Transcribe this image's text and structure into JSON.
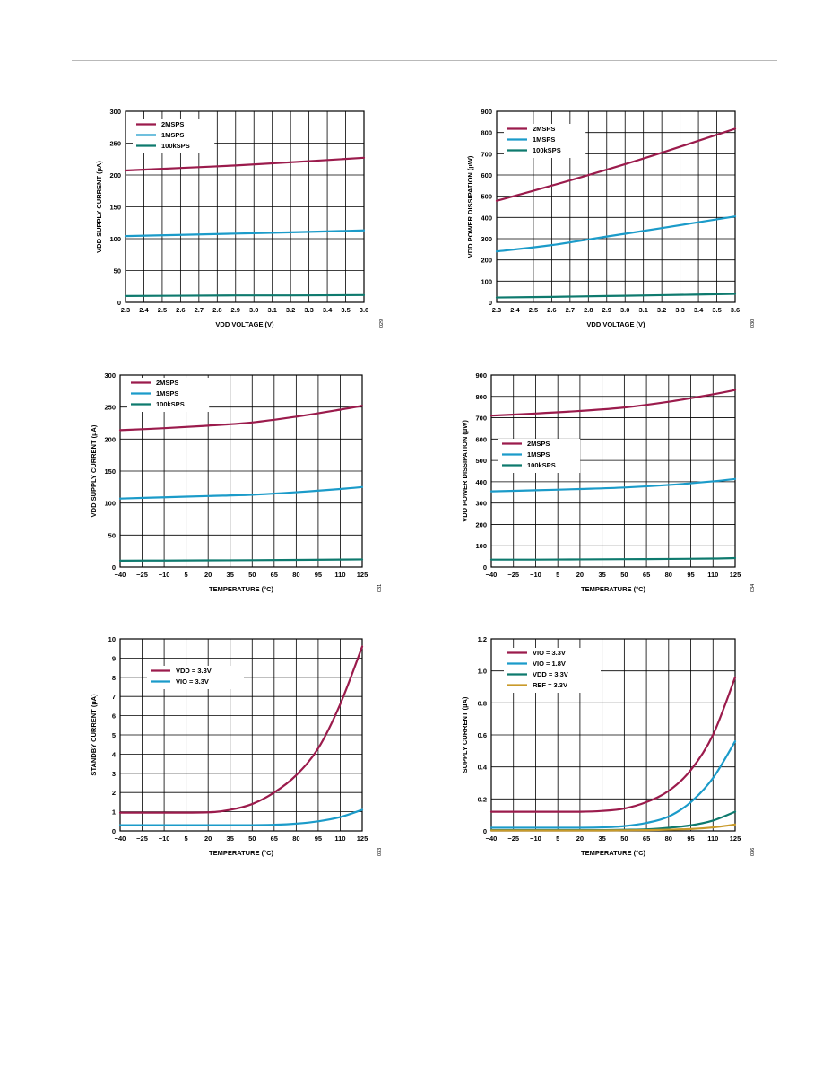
{
  "colors": {
    "maroon": "#9b1b4c",
    "cyan": "#1b9bc9",
    "teal": "#0e7a6e",
    "gold": "#c99a2a",
    "grid": "#000000",
    "rule": "#b9b9b9"
  },
  "chart_data": [
    {
      "type": "line",
      "id": "c1",
      "fig_code": "029",
      "xlabel": "VDD VOLTAGE (V)",
      "ylabel": "VDD SUPPLY CURRENT (µA)",
      "xlim": [
        2.3,
        3.6
      ],
      "ylim": [
        0,
        300
      ],
      "xticks": [
        "2.3",
        "2.4",
        "2.5",
        "2.6",
        "2.7",
        "2.8",
        "2.9",
        "3.0",
        "3.1",
        "3.2",
        "3.3",
        "3.4",
        "3.5",
        "3.6"
      ],
      "yticks": [
        "0",
        "50",
        "100",
        "150",
        "200",
        "250",
        "300"
      ],
      "grid": true,
      "legend_position": "top-left",
      "series": [
        {
          "name": "2MSPS",
          "color_key": "maroon",
          "x": [
            2.3,
            2.6,
            2.9,
            3.2,
            3.6
          ],
          "y": [
            207,
            211,
            215,
            220,
            227
          ]
        },
        {
          "name": "1MSPS",
          "color_key": "cyan",
          "x": [
            2.3,
            2.6,
            2.9,
            3.2,
            3.6
          ],
          "y": [
            104,
            106,
            108,
            110,
            113
          ]
        },
        {
          "name": "100kSPS",
          "color_key": "teal",
          "x": [
            2.3,
            2.6,
            2.9,
            3.2,
            3.6
          ],
          "y": [
            10,
            10.5,
            11,
            11,
            11.5
          ]
        }
      ]
    },
    {
      "type": "line",
      "id": "c2",
      "fig_code": "030",
      "xlabel": "VDD VOLTAGE (V)",
      "ylabel": "VDD POWER DISSIPATION (µW)",
      "xlim": [
        2.3,
        3.6
      ],
      "ylim": [
        0,
        900
      ],
      "xticks": [
        "2.3",
        "2.4",
        "2.5",
        "2.6",
        "2.7",
        "2.8",
        "2.9",
        "3.0",
        "3.1",
        "3.2",
        "3.3",
        "3.4",
        "3.5",
        "3.6"
      ],
      "yticks": [
        "0",
        "100",
        "200",
        "300",
        "400",
        "500",
        "600",
        "700",
        "800",
        "900"
      ],
      "grid": true,
      "legend_position": "top-left",
      "series": [
        {
          "name": "2MSPS",
          "color_key": "maroon",
          "x": [
            2.3,
            2.6,
            2.9,
            3.2,
            3.6
          ],
          "y": [
            478,
            550,
            625,
            705,
            818
          ]
        },
        {
          "name": "1MSPS",
          "color_key": "cyan",
          "x": [
            2.3,
            2.6,
            2.9,
            3.2,
            3.6
          ],
          "y": [
            240,
            270,
            310,
            350,
            405
          ]
        },
        {
          "name": "100kSPS",
          "color_key": "teal",
          "x": [
            2.3,
            2.6,
            2.9,
            3.2,
            3.6
          ],
          "y": [
            23,
            26,
            30,
            34,
            40
          ]
        }
      ]
    },
    {
      "type": "line",
      "id": "c3",
      "fig_code": "031",
      "xlabel": "TEMPERATURE (°C)",
      "ylabel": "VDD SUPPLY CURRENT (µA)",
      "xlim": [
        -40,
        125
      ],
      "ylim": [
        0,
        300
      ],
      "xticks": [
        "−40",
        "−25",
        "−10",
        "5",
        "20",
        "35",
        "50",
        "65",
        "80",
        "95",
        "110",
        "125"
      ],
      "yticks": [
        "0",
        "50",
        "100",
        "150",
        "200",
        "250",
        "300"
      ],
      "grid": true,
      "legend_position": "top-left",
      "series": [
        {
          "name": "2MSPS",
          "color_key": "maroon",
          "x": [
            -40,
            -10,
            20,
            50,
            80,
            110,
            125
          ],
          "y": [
            214,
            217,
            221,
            226,
            235,
            246,
            252
          ]
        },
        {
          "name": "1MSPS",
          "color_key": "cyan",
          "x": [
            -40,
            -10,
            20,
            50,
            80,
            110,
            125
          ],
          "y": [
            107,
            109,
            111,
            113,
            117,
            122,
            125
          ]
        },
        {
          "name": "100kSPS",
          "color_key": "teal",
          "x": [
            -40,
            -10,
            20,
            50,
            80,
            110,
            125
          ],
          "y": [
            10,
            10.2,
            10.5,
            10.8,
            11.2,
            11.7,
            12
          ]
        }
      ]
    },
    {
      "type": "line",
      "id": "c4",
      "fig_code": "034",
      "xlabel": "TEMPERATURE (°C)",
      "ylabel": "VDD POWER DISSIPATION (µW)",
      "xlim": [
        -40,
        125
      ],
      "ylim": [
        0,
        900
      ],
      "xticks": [
        "−40",
        "−25",
        "−10",
        "5",
        "20",
        "35",
        "50",
        "65",
        "80",
        "95",
        "110",
        "125"
      ],
      "yticks": [
        "0",
        "100",
        "200",
        "300",
        "400",
        "500",
        "600",
        "700",
        "800",
        "900"
      ],
      "grid": true,
      "legend_position": "middle-left",
      "series": [
        {
          "name": "2MSPS",
          "color_key": "maroon",
          "x": [
            -40,
            -10,
            20,
            50,
            80,
            110,
            125
          ],
          "y": [
            710,
            720,
            732,
            748,
            775,
            810,
            830
          ]
        },
        {
          "name": "1MSPS",
          "color_key": "cyan",
          "x": [
            -40,
            -10,
            20,
            50,
            80,
            110,
            125
          ],
          "y": [
            355,
            360,
            366,
            373,
            385,
            402,
            413
          ]
        },
        {
          "name": "100kSPS",
          "color_key": "teal",
          "x": [
            -40,
            -10,
            20,
            50,
            80,
            110,
            125
          ],
          "y": [
            35,
            35,
            36,
            37,
            38,
            40,
            42
          ]
        }
      ]
    },
    {
      "type": "line",
      "id": "c5",
      "fig_code": "033",
      "xlabel": "TEMPERATURE (°C)",
      "ylabel": "STANDBY CURRENT (µA)",
      "xlim": [
        -40,
        125
      ],
      "ylim": [
        0,
        10
      ],
      "xticks": [
        "−40",
        "−25",
        "−10",
        "5",
        "20",
        "35",
        "50",
        "65",
        "80",
        "95",
        "110",
        "125"
      ],
      "yticks": [
        "0",
        "1",
        "2",
        "3",
        "4",
        "5",
        "6",
        "7",
        "8",
        "9",
        "10"
      ],
      "grid": true,
      "legend_position": "top-left",
      "series": [
        {
          "name": "VDD = 3.3V",
          "color_key": "maroon",
          "x": [
            -40,
            -10,
            20,
            35,
            50,
            65,
            80,
            95,
            110,
            125
          ],
          "y": [
            0.95,
            0.95,
            0.97,
            1.1,
            1.4,
            2.0,
            2.9,
            4.3,
            6.6,
            9.6
          ]
        },
        {
          "name": "VIO = 3.3V",
          "color_key": "cyan",
          "x": [
            -40,
            -10,
            20,
            35,
            50,
            65,
            80,
            95,
            110,
            125
          ],
          "y": [
            0.3,
            0.3,
            0.3,
            0.3,
            0.3,
            0.32,
            0.38,
            0.5,
            0.72,
            1.1
          ]
        }
      ]
    },
    {
      "type": "line",
      "id": "c6",
      "fig_code": "036",
      "xlabel": "TEMPERATURE (°C)",
      "ylabel": "SUPPLY CURRENT (µA)",
      "xlim": [
        -40,
        125
      ],
      "ylim": [
        0,
        1.2
      ],
      "xticks": [
        "−40",
        "−25",
        "−10",
        "5",
        "20",
        "35",
        "50",
        "65",
        "80",
        "95",
        "110",
        "125"
      ],
      "yticks": [
        "0",
        "0.2",
        "0.4",
        "0.6",
        "0.8",
        "1.0",
        "1.2"
      ],
      "grid": true,
      "legend_position": "top-left",
      "series": [
        {
          "name": "VIO = 3.3V",
          "color_key": "maroon",
          "x": [
            -40,
            -10,
            20,
            35,
            50,
            65,
            80,
            95,
            110,
            125
          ],
          "y": [
            0.12,
            0.12,
            0.12,
            0.125,
            0.14,
            0.18,
            0.25,
            0.38,
            0.6,
            0.96
          ]
        },
        {
          "name": "VIO = 1.8V",
          "color_key": "cyan",
          "x": [
            -40,
            -10,
            20,
            35,
            50,
            65,
            80,
            95,
            110,
            125
          ],
          "y": [
            0.02,
            0.02,
            0.02,
            0.022,
            0.03,
            0.05,
            0.09,
            0.18,
            0.33,
            0.56
          ]
        },
        {
          "name": "VDD = 3.3V",
          "color_key": "teal",
          "x": [
            -40,
            -10,
            20,
            35,
            50,
            65,
            80,
            95,
            110,
            125
          ],
          "y": [
            0.005,
            0.005,
            0.005,
            0.005,
            0.007,
            0.01,
            0.02,
            0.035,
            0.065,
            0.12
          ]
        },
        {
          "name": "REF = 3.3V",
          "color_key": "gold",
          "x": [
            -40,
            -10,
            20,
            35,
            50,
            65,
            80,
            95,
            110,
            125
          ],
          "y": [
            0.003,
            0.003,
            0.003,
            0.003,
            0.004,
            0.005,
            0.008,
            0.012,
            0.022,
            0.04
          ]
        }
      ]
    }
  ]
}
